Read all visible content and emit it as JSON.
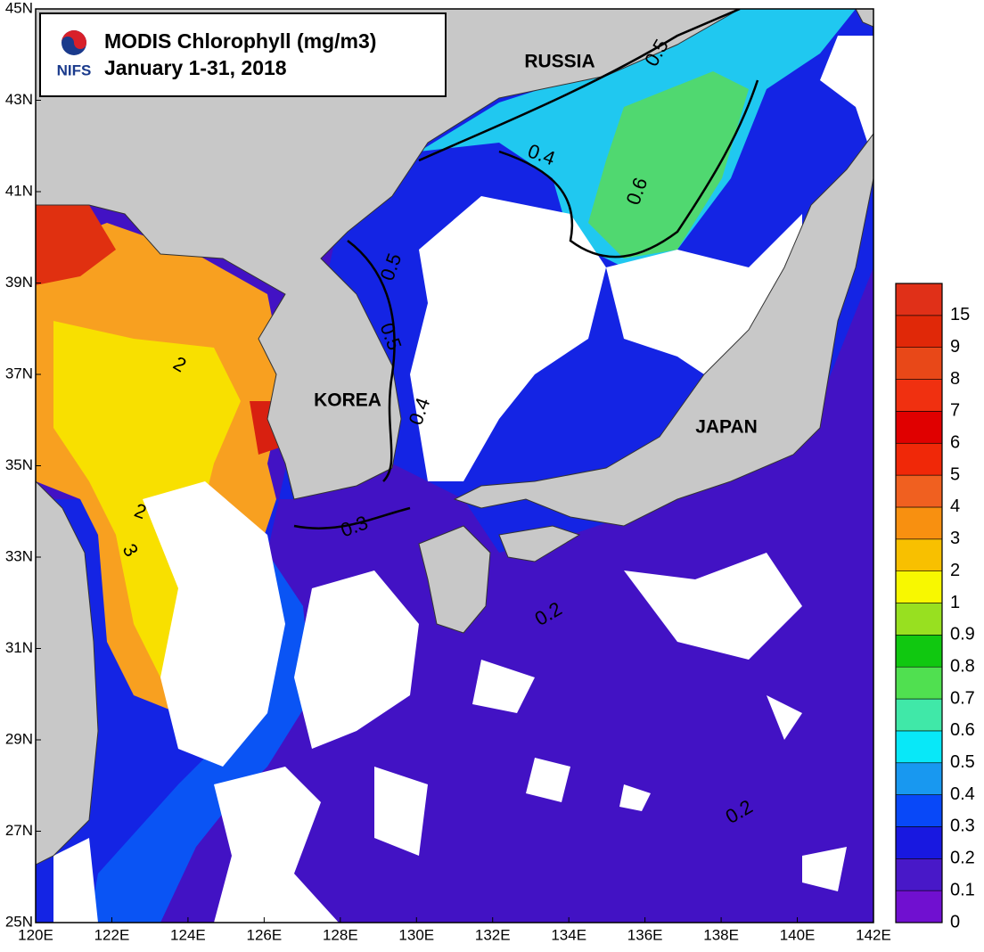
{
  "header": {
    "logo_text": "NIFS",
    "title": "MODIS Chlorophyll (mg/m3)",
    "subtitle": "January 1-31, 2018"
  },
  "place_labels": [
    "RUSSIA",
    "KOREA",
    "JAPAN"
  ],
  "x_ticks": [
    "120E",
    "122E",
    "124E",
    "126E",
    "128E",
    "130E",
    "132E",
    "134E",
    "136E",
    "138E",
    "140E",
    "142E"
  ],
  "y_ticks": [
    "25N",
    "27N",
    "29N",
    "31N",
    "33N",
    "35N",
    "37N",
    "39N",
    "41N",
    "43N",
    "45N"
  ],
  "contour_labels": [
    "0.5",
    "0.4",
    "0.6",
    "0.5",
    "0.5",
    "0.4",
    "0.3",
    "2",
    "2",
    "3",
    "0.2",
    "0.2"
  ],
  "colorbar": {
    "levels": [
      0,
      0.1,
      0.2,
      0.3,
      0.4,
      0.5,
      0.6,
      0.7,
      0.8,
      0.9,
      1,
      2,
      3,
      4,
      5,
      6,
      7,
      8,
      9,
      15
    ],
    "colors": [
      "#7010d0",
      "#4818c8",
      "#1818e0",
      "#0848f8",
      "#1898f0",
      "#08e8f8",
      "#40e8a8",
      "#50e050",
      "#10c810",
      "#98e020",
      "#f8f800",
      "#f8c000",
      "#f89010",
      "#f06020",
      "#f02808",
      "#e00000",
      "#f03010",
      "#e84818",
      "#e02808",
      "#e03018"
    ]
  }
}
